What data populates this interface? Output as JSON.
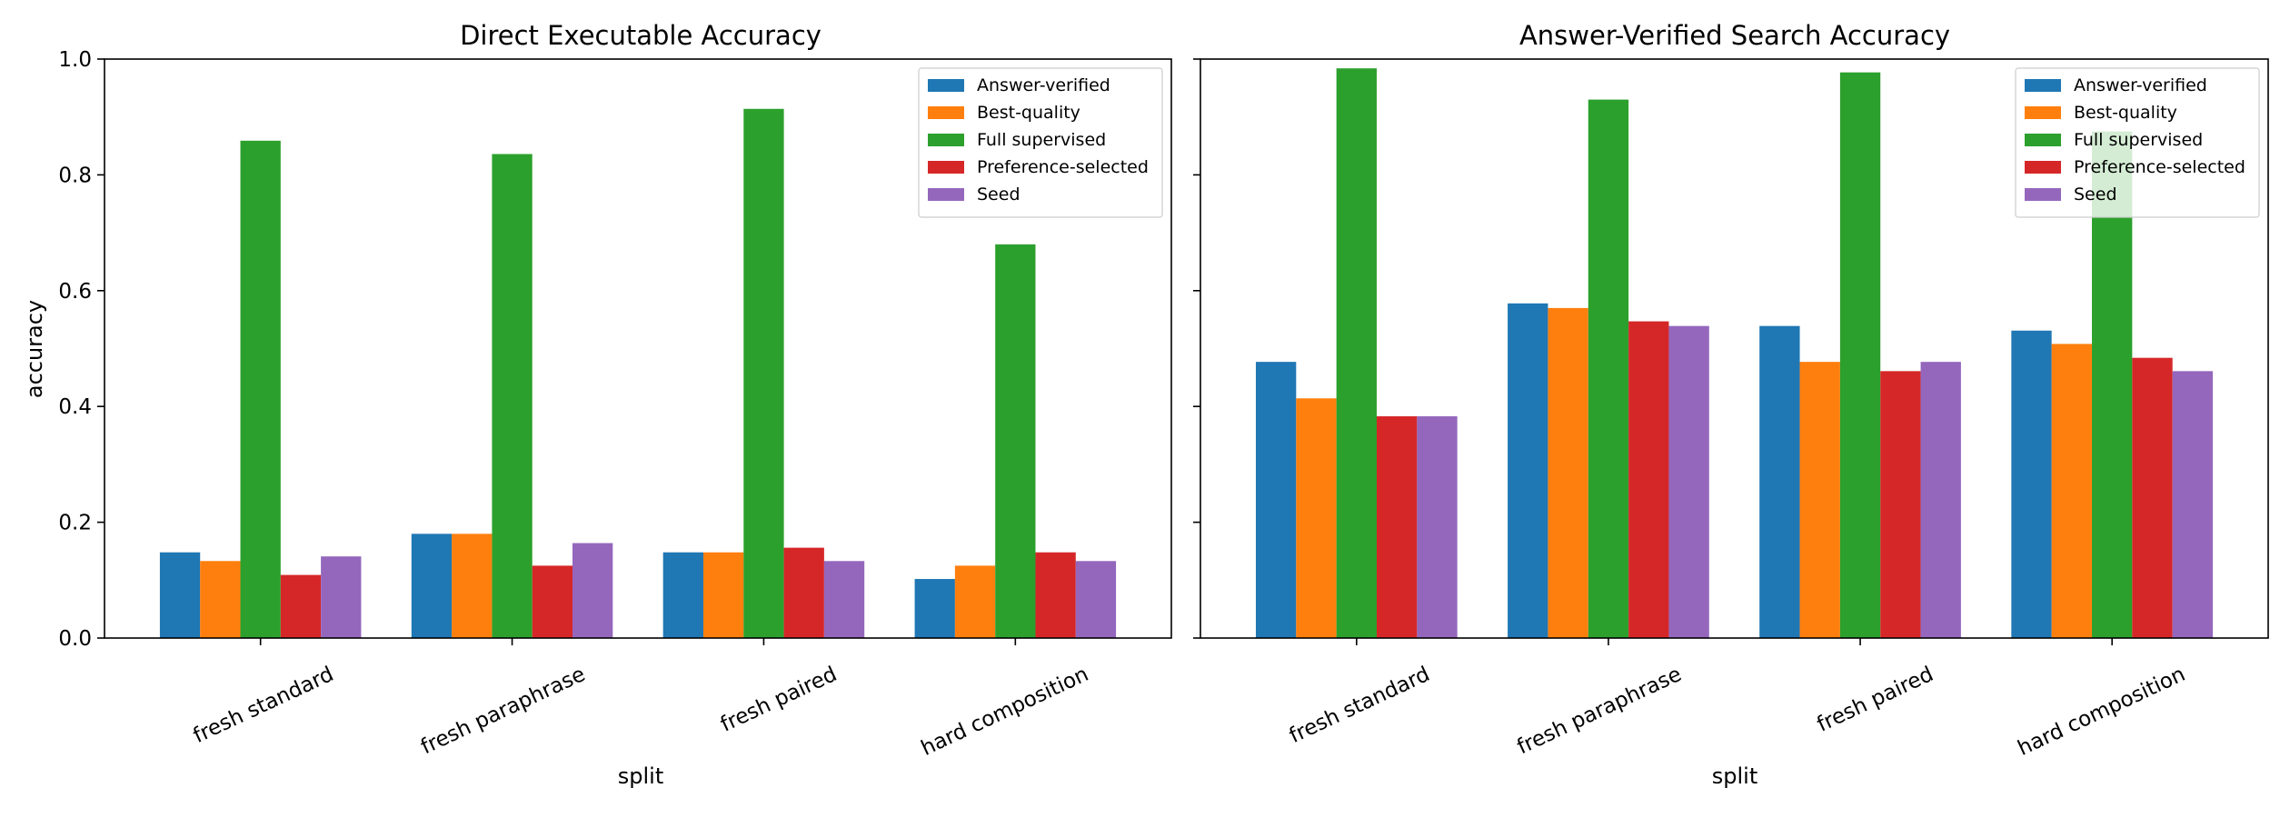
{
  "chart_data": [
    {
      "type": "bar",
      "title": "Direct Executable Accuracy",
      "xlabel": "split",
      "ylabel": "accuracy",
      "ylim": [
        0,
        1.0
      ],
      "yticks": [
        "0.0",
        "0.2",
        "0.4",
        "0.6",
        "0.8",
        "1.0"
      ],
      "categories": [
        "fresh standard",
        "fresh paraphrase",
        "fresh paired",
        "hard composition"
      ],
      "legend_position": "top-right",
      "series": [
        {
          "name": "Answer-verified",
          "color": "#1f77b4",
          "values": [
            0.148,
            0.18,
            0.148,
            0.102
          ]
        },
        {
          "name": "Best-quality",
          "color": "#ff7f0e",
          "values": [
            0.133,
            0.18,
            0.148,
            0.125
          ]
        },
        {
          "name": "Full supervised",
          "color": "#2ca02c",
          "values": [
            0.859,
            0.836,
            0.914,
            0.68
          ]
        },
        {
          "name": "Preference-selected",
          "color": "#d62728",
          "values": [
            0.109,
            0.125,
            0.156,
            0.148
          ]
        },
        {
          "name": "Seed",
          "color": "#9467bd",
          "values": [
            0.141,
            0.164,
            0.133,
            0.133
          ]
        }
      ]
    },
    {
      "type": "bar",
      "title": "Answer-Verified Search Accuracy",
      "xlabel": "split",
      "ylabel": "",
      "ylim": [
        0,
        1.0
      ],
      "categories": [
        "fresh standard",
        "fresh paraphrase",
        "fresh paired",
        "hard composition"
      ],
      "legend_position": "top-right",
      "series": [
        {
          "name": "Answer-verified",
          "color": "#1f77b4",
          "values": [
            0.477,
            0.578,
            0.539,
            0.531
          ]
        },
        {
          "name": "Best-quality",
          "color": "#ff7f0e",
          "values": [
            0.414,
            0.57,
            0.477,
            0.508
          ]
        },
        {
          "name": "Full supervised",
          "color": "#2ca02c",
          "values": [
            0.984,
            0.93,
            0.977,
            0.875
          ]
        },
        {
          "name": "Preference-selected",
          "color": "#d62728",
          "values": [
            0.383,
            0.547,
            0.461,
            0.484
          ]
        },
        {
          "name": "Seed",
          "color": "#9467bd",
          "values": [
            0.383,
            0.539,
            0.477,
            0.461
          ]
        }
      ]
    }
  ]
}
